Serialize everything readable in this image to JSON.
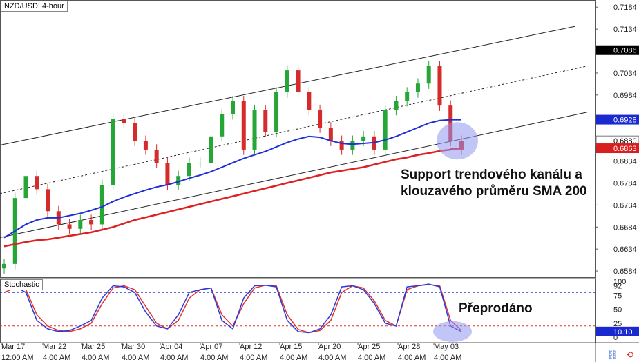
{
  "window": {
    "title": "NZD/USD: 4-hour",
    "indicator_label": "Stochastic",
    "icons": [
      "link-icon",
      "refresh-icon"
    ]
  },
  "annotations": {
    "support_line1": "Support trendového kanálu a",
    "support_line2": "klouzavého průměru SMA 200",
    "oversold": "Přeprodáno"
  },
  "colors": {
    "candle_up": "#26a636",
    "candle_down": "#d62b2b",
    "sma_blue": "#1f2fd6",
    "sma_red": "#e02020",
    "channel": "#222222",
    "stoch_blue": "#2a39d9",
    "stoch_red": "#e03030",
    "highlight": "#8f97f0",
    "price_blue_tag": "#1a2ad0",
    "price_red_tag": "#d81f1f",
    "price_black_tag": "#000000"
  },
  "chart_data": {
    "type": "line",
    "title": "NZD/USD: 4-hour",
    "price_axis": {
      "ticks": [
        "0.7184",
        "0.7134",
        "0.7086",
        "0.7034",
        "0.6984",
        "0.6928",
        "0.6880",
        "0.6863",
        "0.6834",
        "0.6784",
        "0.6734",
        "0.6684",
        "0.6634",
        "0.6584"
      ],
      "ylim": [
        0.657,
        0.72
      ],
      "tags": [
        {
          "label": "0.7086",
          "value": 0.7086,
          "style": "black"
        },
        {
          "label": "0.6928",
          "value": 0.6928,
          "style": "blue"
        },
        {
          "label": "0.6880",
          "value": 0.688,
          "style": "white"
        },
        {
          "label": "0.6863",
          "value": 0.6863,
          "style": "red"
        }
      ]
    },
    "x_labels_dates": [
      "Mar 17",
      "Mar 22",
      "Mar 25",
      "Mar 30",
      "Apr 04",
      "Apr 07",
      "Apr 12",
      "Apr 15",
      "Apr 20",
      "Apr 25",
      "Apr 28",
      "May 03"
    ],
    "x_labels_times": [
      "12:00 AM",
      "4:00 AM",
      "4:00 AM",
      "4:00 AM",
      "4:00 AM",
      "4:00 AM",
      "4:00 AM",
      "4:00 AM",
      "4:00 AM",
      "4:00 AM",
      "4:00 AM",
      "4:00 AM"
    ],
    "series": [
      {
        "name": "",
        "kind": "close",
        "values": [
          0.66,
          0.675,
          0.68,
          0.677,
          0.672,
          0.669,
          0.668,
          0.67,
          0.669,
          0.678,
          0.693,
          0.692,
          0.688,
          0.686,
          0.683,
          0.678,
          0.68,
          0.683,
          0.683,
          0.689,
          0.694,
          0.697,
          0.686,
          0.695,
          0.69,
          0.699,
          0.704,
          0.699,
          0.695,
          0.691,
          0.688,
          0.686,
          0.688,
          0.689,
          0.686,
          0.695,
          0.697,
          0.699,
          0.701,
          0.705,
          0.696,
          0.688,
          0.686
        ]
      },
      {
        "name": "",
        "kind": "sma_blue",
        "values": [
          0.666,
          0.6675,
          0.669,
          0.67,
          0.6705,
          0.6705,
          0.671,
          0.6715,
          0.6722,
          0.673,
          0.6742,
          0.6752,
          0.676,
          0.6768,
          0.6775,
          0.678,
          0.6787,
          0.6795,
          0.6802,
          0.681,
          0.682,
          0.683,
          0.684,
          0.6848,
          0.6856,
          0.6866,
          0.6876,
          0.6884,
          0.689,
          0.6888,
          0.688,
          0.6874,
          0.6872,
          0.6874,
          0.6876,
          0.6882,
          0.689,
          0.69,
          0.691,
          0.692,
          0.6926,
          0.6928,
          0.6928
        ]
      },
      {
        "name": "",
        "kind": "sma_red",
        "values": [
          0.664,
          0.6645,
          0.665,
          0.6654,
          0.6656,
          0.666,
          0.6664,
          0.6668,
          0.6672,
          0.6678,
          0.6684,
          0.6692,
          0.67,
          0.6706,
          0.6712,
          0.6718,
          0.6724,
          0.673,
          0.6736,
          0.6742,
          0.6748,
          0.6754,
          0.676,
          0.6766,
          0.6772,
          0.6778,
          0.6784,
          0.679,
          0.6796,
          0.6802,
          0.6808,
          0.6812,
          0.6816,
          0.682,
          0.6826,
          0.6832,
          0.6838,
          0.6842,
          0.6848,
          0.6852,
          0.6857,
          0.686,
          0.6863
        ]
      }
    ],
    "stochastic": {
      "ticks": [
        "100",
        "92",
        "75",
        "50",
        "25",
        "10.10",
        "10",
        "0"
      ],
      "ylim": [
        0,
        100
      ],
      "levels": [
        80,
        20
      ],
      "current_value": 10.1,
      "k": [
        85,
        90,
        80,
        30,
        15,
        10,
        12,
        20,
        30,
        70,
        92,
        90,
        80,
        45,
        20,
        15,
        40,
        80,
        85,
        88,
        30,
        15,
        70,
        92,
        93,
        90,
        30,
        10,
        8,
        15,
        40,
        90,
        92,
        85,
        60,
        25,
        20,
        90,
        92,
        95,
        90,
        20,
        10
      ],
      "d": [
        80,
        88,
        85,
        40,
        20,
        12,
        10,
        15,
        25,
        60,
        88,
        92,
        85,
        55,
        25,
        15,
        30,
        70,
        85,
        88,
        40,
        20,
        60,
        88,
        93,
        92,
        40,
        14,
        8,
        12,
        30,
        80,
        92,
        88,
        65,
        30,
        20,
        85,
        92,
        94,
        92,
        30,
        12
      ]
    }
  }
}
